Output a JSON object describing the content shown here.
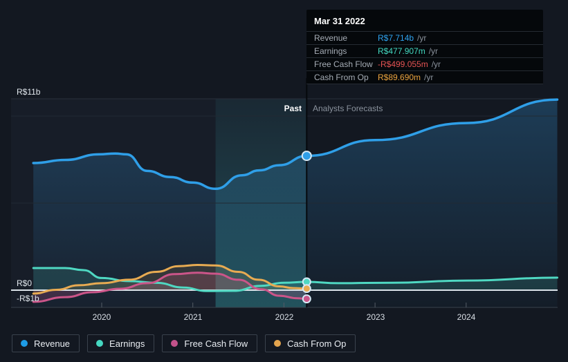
{
  "tooltip": {
    "date": "Mar 31 2022",
    "rows": [
      {
        "label": "Revenue",
        "value": "R$7.714b",
        "suffix": "/yr",
        "color": "#2fa3f0"
      },
      {
        "label": "Earnings",
        "value": "R$477.907m",
        "suffix": "/yr",
        "color": "#43d9c0"
      },
      {
        "label": "Free Cash Flow",
        "value": "-R$499.055m",
        "suffix": "/yr",
        "color": "#e55353"
      },
      {
        "label": "Cash From Op",
        "value": "R$89.690m",
        "suffix": "/yr",
        "color": "#eba33e"
      }
    ]
  },
  "legend": [
    {
      "label": "Revenue",
      "color": "#1e9ce6"
    },
    {
      "label": "Earnings",
      "color": "#45d7c1"
    },
    {
      "label": "Free Cash Flow",
      "color": "#c2528b"
    },
    {
      "label": "Cash From Op",
      "color": "#e3a44e"
    }
  ],
  "chart_data": {
    "type": "line",
    "x_unit": "calendar_year",
    "xlim": [
      2019.25,
      2025.0
    ],
    "ylim_billions": [
      -1,
      11
    ],
    "grid": true,
    "unlabeled_gridlines_billions": [
      10,
      5
    ],
    "past_label": "Past",
    "forecast_label": "Analysts Forecasts",
    "past_band": {
      "start": 2021.25,
      "end": 2022.25
    },
    "divider_date": "Mar 31 2022",
    "y_axis_labels": [
      {
        "value": 11,
        "label": "R$11b"
      },
      {
        "value": 0,
        "label": "R$0"
      },
      {
        "value": -1,
        "label": "-R$1b"
      }
    ],
    "x_ticks": [
      2020,
      2021,
      2022,
      2023,
      2024
    ],
    "x_tick_labels": [
      "2020",
      "2021",
      "2022",
      "2023",
      "2024"
    ],
    "series": [
      {
        "name": "Revenue",
        "unit": "R$ billions /yr",
        "color": "#2f9fe8",
        "fill_color": "url(#gradRev)",
        "fill_base": "bottom",
        "marker_value": 7.714,
        "past": [
          [
            2019.25,
            7.3
          ],
          [
            2019.6,
            7.48
          ],
          [
            2019.97,
            7.8
          ],
          [
            2020.15,
            7.85
          ],
          [
            2020.27,
            7.8
          ],
          [
            2020.5,
            6.85
          ],
          [
            2020.75,
            6.5
          ],
          [
            2021.0,
            6.18
          ],
          [
            2021.25,
            5.82
          ],
          [
            2021.54,
            6.6
          ],
          [
            2021.73,
            6.88
          ],
          [
            2021.95,
            7.18
          ],
          [
            2022.25,
            7.714
          ]
        ],
        "forecast": [
          [
            2022.25,
            7.714
          ],
          [
            2023.0,
            8.62
          ],
          [
            2024.0,
            9.6
          ],
          [
            2025.0,
            10.95
          ]
        ]
      },
      {
        "name": "Earnings",
        "unit": "R$ billions /yr",
        "color": "#4fd8c2",
        "fill_color": "rgba(80,215,195,0.15)",
        "fill_base": "zero",
        "marker_value": 0.478,
        "past": [
          [
            2019.25,
            1.27
          ],
          [
            2019.6,
            1.27
          ],
          [
            2019.8,
            1.15
          ],
          [
            2020.0,
            0.7
          ],
          [
            2020.3,
            0.52
          ],
          [
            2020.6,
            0.42
          ],
          [
            2020.9,
            0.15
          ],
          [
            2021.15,
            -0.05
          ],
          [
            2021.45,
            -0.04
          ],
          [
            2021.75,
            0.25
          ],
          [
            2022.0,
            0.43
          ],
          [
            2022.25,
            0.478
          ]
        ],
        "forecast": [
          [
            2022.25,
            0.478
          ],
          [
            2022.6,
            0.4
          ],
          [
            2023.2,
            0.43
          ],
          [
            2024.0,
            0.55
          ],
          [
            2025.0,
            0.72
          ]
        ]
      },
      {
        "name": "Free Cash Flow",
        "unit": "R$ billions /yr",
        "color": "#cb5589",
        "fill_color": "rgba(200,85,140,0.22)",
        "fill_base": "zero",
        "marker_value": -0.499,
        "past": [
          [
            2019.25,
            -0.67
          ],
          [
            2019.6,
            -0.4
          ],
          [
            2019.9,
            -0.12
          ],
          [
            2020.2,
            0.08
          ],
          [
            2020.5,
            0.4
          ],
          [
            2020.8,
            0.92
          ],
          [
            2021.05,
            1.0
          ],
          [
            2021.25,
            0.95
          ],
          [
            2021.5,
            0.6
          ],
          [
            2021.75,
            0.05
          ],
          [
            2021.95,
            -0.32
          ],
          [
            2022.15,
            -0.47
          ],
          [
            2022.25,
            -0.499
          ]
        ],
        "forecast": []
      },
      {
        "name": "Cash From Op",
        "unit": "R$ billions /yr",
        "color": "#e8ab52",
        "fill_color": "rgba(230,170,80,0.13)",
        "fill_base": "zero",
        "marker_value": 0.0897,
        "past": [
          [
            2019.25,
            -0.2
          ],
          [
            2019.5,
            0.02
          ],
          [
            2019.75,
            0.28
          ],
          [
            2020.0,
            0.4
          ],
          [
            2020.3,
            0.6
          ],
          [
            2020.6,
            1.05
          ],
          [
            2020.85,
            1.38
          ],
          [
            2021.05,
            1.45
          ],
          [
            2021.25,
            1.42
          ],
          [
            2021.5,
            1.05
          ],
          [
            2021.72,
            0.6
          ],
          [
            2021.95,
            0.22
          ],
          [
            2022.1,
            0.12
          ],
          [
            2022.25,
            0.0897
          ]
        ],
        "forecast": []
      }
    ]
  }
}
